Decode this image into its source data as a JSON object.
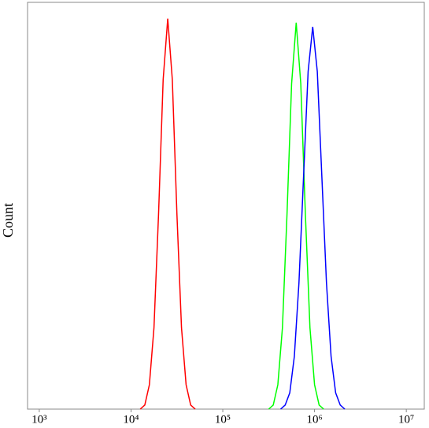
{
  "chart_data": {
    "type": "line",
    "ylabel": "Count",
    "xscale": "log",
    "xlim": [
      745,
      15700000
    ],
    "ylim": [
      0,
      100
    ],
    "xticks": [
      {
        "value": 1000,
        "label": "10³"
      },
      {
        "value": 10000,
        "label": "10⁴"
      },
      {
        "value": 100000,
        "label": "10⁵"
      },
      {
        "value": 1000000,
        "label": "10⁶"
      },
      {
        "value": 10000000,
        "label": "10⁷"
      }
    ],
    "series": [
      {
        "color": "#ff0000",
        "x": [
          12589,
          14125,
          15849,
          17783,
          19953,
          22387,
          25119,
          28184,
          31623,
          35481,
          39811,
          44668,
          50119
        ],
        "values": [
          0,
          1,
          6,
          20,
          48,
          81,
          96,
          81,
          48,
          20,
          6,
          1,
          0
        ]
      },
      {
        "color": "#00ff00",
        "x": [
          316228,
          354813,
          398107,
          446684,
          501187,
          562341,
          630957,
          707946,
          794328,
          891251,
          1000000,
          1122018,
          1258925
        ],
        "values": [
          0,
          1,
          6,
          20,
          48,
          80,
          95,
          80,
          48,
          20,
          6,
          1,
          0
        ]
      },
      {
        "color": "#0000ff",
        "x": [
          426580,
          478630,
          537032,
          602560,
          676083,
          758578,
          851138,
          954993,
          1071519,
          1202264,
          1348963,
          1513561,
          1698244,
          1905461,
          2137962
        ],
        "values": [
          0,
          1,
          4,
          13,
          31,
          57,
          83,
          94,
          83,
          57,
          31,
          13,
          4,
          1,
          0
        ]
      }
    ]
  }
}
